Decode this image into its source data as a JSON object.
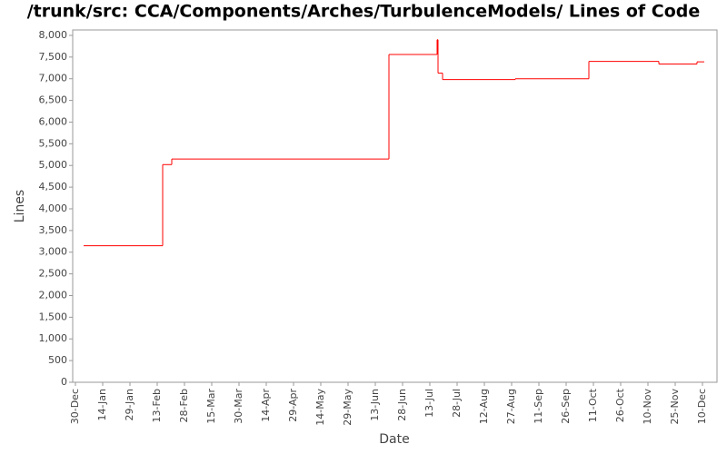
{
  "chart_data": {
    "type": "step",
    "title": "/trunk/src: CCA/Components/Arches/TurbulenceModels/ Lines of Code",
    "x_label": "Date",
    "y_label": "Lines",
    "series": [
      {
        "name": "Lines",
        "color": "#ff0000",
        "x": [
          4.5,
          48,
          53,
          172.5,
          199,
          199.5,
          202,
          242,
          282.5,
          321,
          342,
          346
        ],
        "values": [
          3150,
          5020,
          5150,
          7560,
          7900,
          7130,
          6980,
          7000,
          7400,
          7340,
          7390,
          7390
        ]
      }
    ],
    "xlim": [
      -1.5,
      353
    ],
    "xticks": [
      {
        "value": 0,
        "label": "30-Dec"
      },
      {
        "value": 15,
        "label": "14-Jan"
      },
      {
        "value": 30,
        "label": "29-Jan"
      },
      {
        "value": 45,
        "label": "13-Feb"
      },
      {
        "value": 60,
        "label": "28-Feb"
      },
      {
        "value": 75,
        "label": "15-Mar"
      },
      {
        "value": 90,
        "label": "30-Mar"
      },
      {
        "value": 105,
        "label": "14-Apr"
      },
      {
        "value": 120,
        "label": "29-Apr"
      },
      {
        "value": 135,
        "label": "14-May"
      },
      {
        "value": 150,
        "label": "29-May"
      },
      {
        "value": 165,
        "label": "13-Jun"
      },
      {
        "value": 180,
        "label": "28-Jun"
      },
      {
        "value": 195,
        "label": "13-Jul"
      },
      {
        "value": 210,
        "label": "28-Jul"
      },
      {
        "value": 225,
        "label": "12-Aug"
      },
      {
        "value": 240,
        "label": "27-Aug"
      },
      {
        "value": 255,
        "label": "11-Sep"
      },
      {
        "value": 270,
        "label": "26-Sep"
      },
      {
        "value": 285,
        "label": "11-Oct"
      },
      {
        "value": 300,
        "label": "26-Oct"
      },
      {
        "value": 315,
        "label": "10-Nov"
      },
      {
        "value": 330,
        "label": "25-Nov"
      },
      {
        "value": 345,
        "label": "10-Dec"
      }
    ],
    "ylim": [
      0,
      8125
    ],
    "yticks": [
      0,
      500,
      {
        "value": 1000,
        "label": "1,000"
      },
      {
        "value": 1500,
        "label": "1,500"
      },
      {
        "value": 2000,
        "label": "2,000"
      },
      {
        "value": 2500,
        "label": "2,500"
      },
      {
        "value": 3000,
        "label": "3,000"
      },
      {
        "value": 3500,
        "label": "3,500"
      },
      {
        "value": 4000,
        "label": "4,000"
      },
      {
        "value": 4500,
        "label": "4,500"
      },
      {
        "value": 5000,
        "label": "5,000"
      },
      {
        "value": 5500,
        "label": "5,500"
      },
      {
        "value": 6000,
        "label": "6,000"
      },
      {
        "value": 6500,
        "label": "6,500"
      },
      {
        "value": 7000,
        "label": "7,000"
      },
      {
        "value": 7500,
        "label": "7,500"
      },
      {
        "value": 8000,
        "label": "8,000"
      }
    ],
    "grid": false
  }
}
